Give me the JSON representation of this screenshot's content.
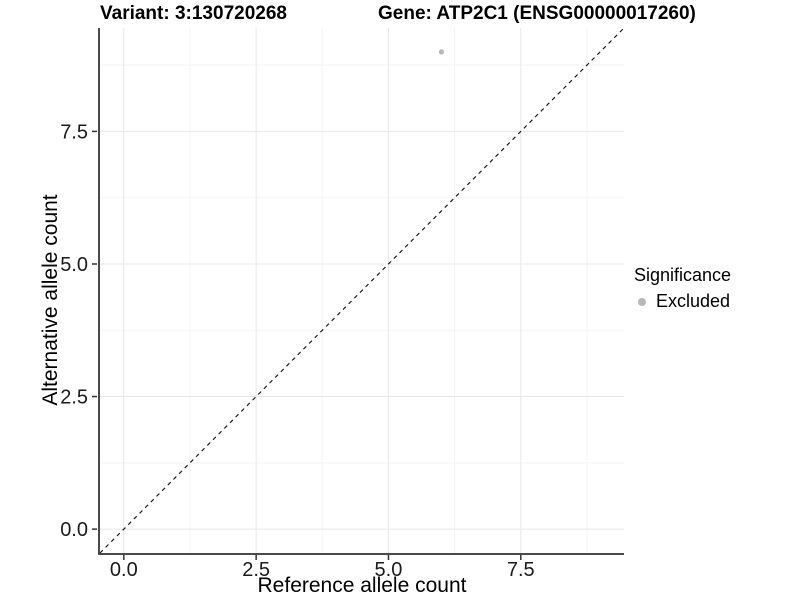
{
  "chart_data": {
    "type": "scatter",
    "title_left": "Variant: 3:130720268",
    "title_right": "Gene: ATP2C1 (ENSG00000017260)",
    "xlabel": "Reference allele count",
    "ylabel": "Alternative allele count",
    "xlim": [
      -0.45,
      9.45
    ],
    "ylim": [
      -0.45,
      9.45
    ],
    "x_ticks": [
      {
        "v": 0,
        "label": "0.0"
      },
      {
        "v": 2.5,
        "label": "2.5"
      },
      {
        "v": 5,
        "label": "5.0"
      },
      {
        "v": 7.5,
        "label": "7.5"
      }
    ],
    "y_ticks": [
      {
        "v": 0,
        "label": "0.0"
      },
      {
        "v": 2.5,
        "label": "2.5"
      },
      {
        "v": 5,
        "label": "5.0"
      },
      {
        "v": 7.5,
        "label": "7.5"
      }
    ],
    "grid_minor": [
      1.25,
      3.75,
      6.25,
      8.75
    ],
    "grid": true,
    "series": [
      {
        "name": "Excluded",
        "color": "#b8b8b8",
        "marker": "circle",
        "points": [
          {
            "x": 6,
            "y": 9
          }
        ]
      }
    ],
    "reference_line": {
      "type": "identity",
      "slope": 1,
      "intercept": 0,
      "style": "dashed",
      "color": "#1a1a1a"
    },
    "legend": {
      "title": "Significance",
      "position": "right",
      "items": [
        {
          "label": "Excluded",
          "color": "#b8b8b8",
          "marker": "circle"
        }
      ]
    },
    "colors": {
      "background": "#ffffff",
      "grid_major": "#e7e7e7",
      "grid_minor": "#f3f3f3",
      "axis_line": "#4a4a4a",
      "tick_mark": "#333333",
      "tick_text": "#1a1a1a"
    }
  }
}
